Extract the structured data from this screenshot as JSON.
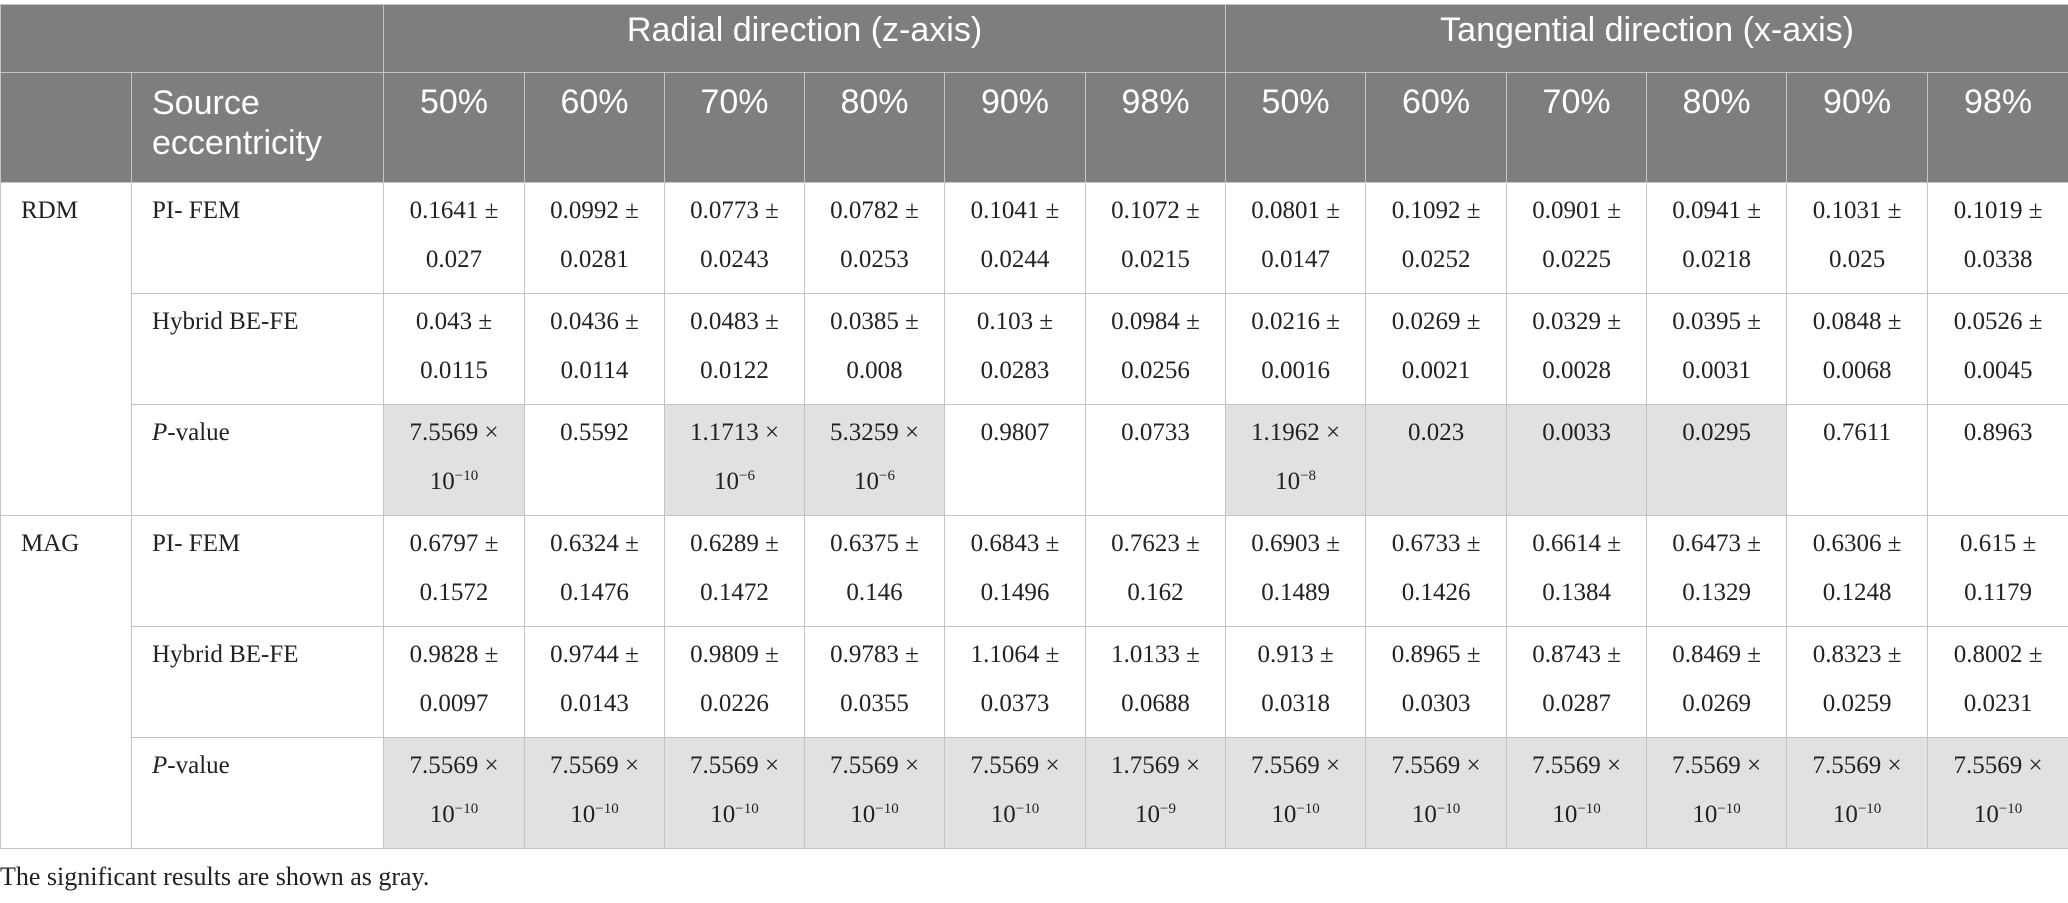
{
  "header": {
    "group_radial": "Radial direction (z-axis)",
    "group_tangential": "Tangential direction (x-axis)",
    "row_label": "Source eccentricity",
    "radial_columns": [
      "50%",
      "60%",
      "70%",
      "80%",
      "90%",
      "98%"
    ],
    "tangential_columns": [
      "50%",
      "60%",
      "70%",
      "80%",
      "90%",
      "98%"
    ]
  },
  "groups": [
    {
      "name": "RDM",
      "rows": [
        {
          "method": "PI- FEM",
          "cells": [
            {
              "a": "0.1641 ±",
              "b": "0.027"
            },
            {
              "a": "0.0992 ±",
              "b": "0.0281"
            },
            {
              "a": "0.0773 ±",
              "b": "0.0243"
            },
            {
              "a": "0.0782 ±",
              "b": "0.0253"
            },
            {
              "a": "0.1041 ±",
              "b": "0.0244"
            },
            {
              "a": "0.1072 ±",
              "b": "0.0215"
            },
            {
              "a": "0.0801 ±",
              "b": "0.0147"
            },
            {
              "a": "0.1092 ±",
              "b": "0.0252"
            },
            {
              "a": "0.0901 ±",
              "b": "0.0225"
            },
            {
              "a": "0.0941 ±",
              "b": "0.0218"
            },
            {
              "a": "0.1031 ±",
              "b": "0.025"
            },
            {
              "a": "0.1019 ±",
              "b": "0.0338"
            }
          ]
        },
        {
          "method": "Hybrid BE-FE",
          "cells": [
            {
              "a": "0.043 ±",
              "b": "0.0115"
            },
            {
              "a": "0.0436 ±",
              "b": "0.0114"
            },
            {
              "a": "0.0483 ±",
              "b": "0.0122"
            },
            {
              "a": "0.0385 ±",
              "b": "0.008"
            },
            {
              "a": "0.103 ±",
              "b": "0.0283"
            },
            {
              "a": "0.0984 ±",
              "b": "0.0256"
            },
            {
              "a": "0.0216 ±",
              "b": "0.0016"
            },
            {
              "a": "0.0269 ±",
              "b": "0.0021"
            },
            {
              "a": "0.0329 ±",
              "b": "0.0028"
            },
            {
              "a": "0.0395 ±",
              "b": "0.0031"
            },
            {
              "a": "0.0848 ±",
              "b": "0.0068"
            },
            {
              "a": "0.0526 ±",
              "b": "0.0045"
            }
          ]
        },
        {
          "method_italic": "P",
          "method_rest": "-value",
          "pvalues": [
            {
              "a": "7.5569 ×",
              "base": "10",
              "exp": "−10",
              "sig": true
            },
            {
              "a": "0.5592",
              "sig": false
            },
            {
              "a": "1.1713 ×",
              "base": "10",
              "exp": "−6",
              "sig": true
            },
            {
              "a": "5.3259 ×",
              "base": "10",
              "exp": "−6",
              "sig": true
            },
            {
              "a": "0.9807",
              "sig": false
            },
            {
              "a": "0.0733",
              "sig": false
            },
            {
              "a": "1.1962 ×",
              "base": "10",
              "exp": "−8",
              "sig": true
            },
            {
              "a": "0.023",
              "sig": true
            },
            {
              "a": "0.0033",
              "sig": true
            },
            {
              "a": "0.0295",
              "sig": true
            },
            {
              "a": "0.7611",
              "sig": false
            },
            {
              "a": "0.8963",
              "sig": false
            }
          ]
        }
      ]
    },
    {
      "name": "MAG",
      "rows": [
        {
          "method": "PI- FEM",
          "cells": [
            {
              "a": "0.6797 ±",
              "b": "0.1572"
            },
            {
              "a": "0.6324 ±",
              "b": "0.1476"
            },
            {
              "a": "0.6289 ±",
              "b": "0.1472"
            },
            {
              "a": "0.6375 ±",
              "b": "0.146"
            },
            {
              "a": "0.6843 ±",
              "b": "0.1496"
            },
            {
              "a": "0.7623 ±",
              "b": "0.162"
            },
            {
              "a": "0.6903 ±",
              "b": "0.1489"
            },
            {
              "a": "0.6733 ±",
              "b": "0.1426"
            },
            {
              "a": "0.6614 ±",
              "b": "0.1384"
            },
            {
              "a": "0.6473 ±",
              "b": "0.1329"
            },
            {
              "a": "0.6306 ±",
              "b": "0.1248"
            },
            {
              "a": "0.615 ±",
              "b": "0.1179"
            }
          ]
        },
        {
          "method": "Hybrid BE-FE",
          "cells": [
            {
              "a": "0.9828 ±",
              "b": "0.0097"
            },
            {
              "a": "0.9744 ±",
              "b": "0.0143"
            },
            {
              "a": "0.9809 ±",
              "b": "0.0226"
            },
            {
              "a": "0.9783 ±",
              "b": "0.0355"
            },
            {
              "a": "1.1064 ±",
              "b": "0.0373"
            },
            {
              "a": "1.0133 ±",
              "b": "0.0688"
            },
            {
              "a": "0.913 ±",
              "b": "0.0318"
            },
            {
              "a": "0.8965 ±",
              "b": "0.0303"
            },
            {
              "a": "0.8743 ±",
              "b": "0.0287"
            },
            {
              "a": "0.8469 ±",
              "b": "0.0269"
            },
            {
              "a": "0.8323 ±",
              "b": "0.0259"
            },
            {
              "a": "0.8002 ±",
              "b": "0.0231"
            }
          ]
        },
        {
          "method_italic": "P",
          "method_rest": "-value",
          "pvalues": [
            {
              "a": "7.5569 ×",
              "base": "10",
              "exp": "−10",
              "sig": true
            },
            {
              "a": "7.5569 ×",
              "base": "10",
              "exp": "−10",
              "sig": true
            },
            {
              "a": "7.5569 ×",
              "base": "10",
              "exp": "−10",
              "sig": true
            },
            {
              "a": "7.5569 ×",
              "base": "10",
              "exp": "−10",
              "sig": true
            },
            {
              "a": "7.5569 ×",
              "base": "10",
              "exp": "−10",
              "sig": true
            },
            {
              "a": "1.7569 ×",
              "base": "10",
              "exp": "−9",
              "sig": true
            },
            {
              "a": "7.5569 ×",
              "base": "10",
              "exp": "−10",
              "sig": true
            },
            {
              "a": "7.5569 ×",
              "base": "10",
              "exp": "−10",
              "sig": true
            },
            {
              "a": "7.5569 ×",
              "base": "10",
              "exp": "−10",
              "sig": true
            },
            {
              "a": "7.5569 ×",
              "base": "10",
              "exp": "−10",
              "sig": true
            },
            {
              "a": "7.5569 ×",
              "base": "10",
              "exp": "−10",
              "sig": true
            },
            {
              "a": "7.5569 ×",
              "base": "10",
              "exp": "−10",
              "sig": true
            }
          ]
        }
      ]
    }
  ],
  "footnote": "The significant results are shown as gray.",
  "colors": {
    "header_bg": "#7d7e7d",
    "significant_bg": "#e2e1e1",
    "border": "#c4c4c4"
  }
}
